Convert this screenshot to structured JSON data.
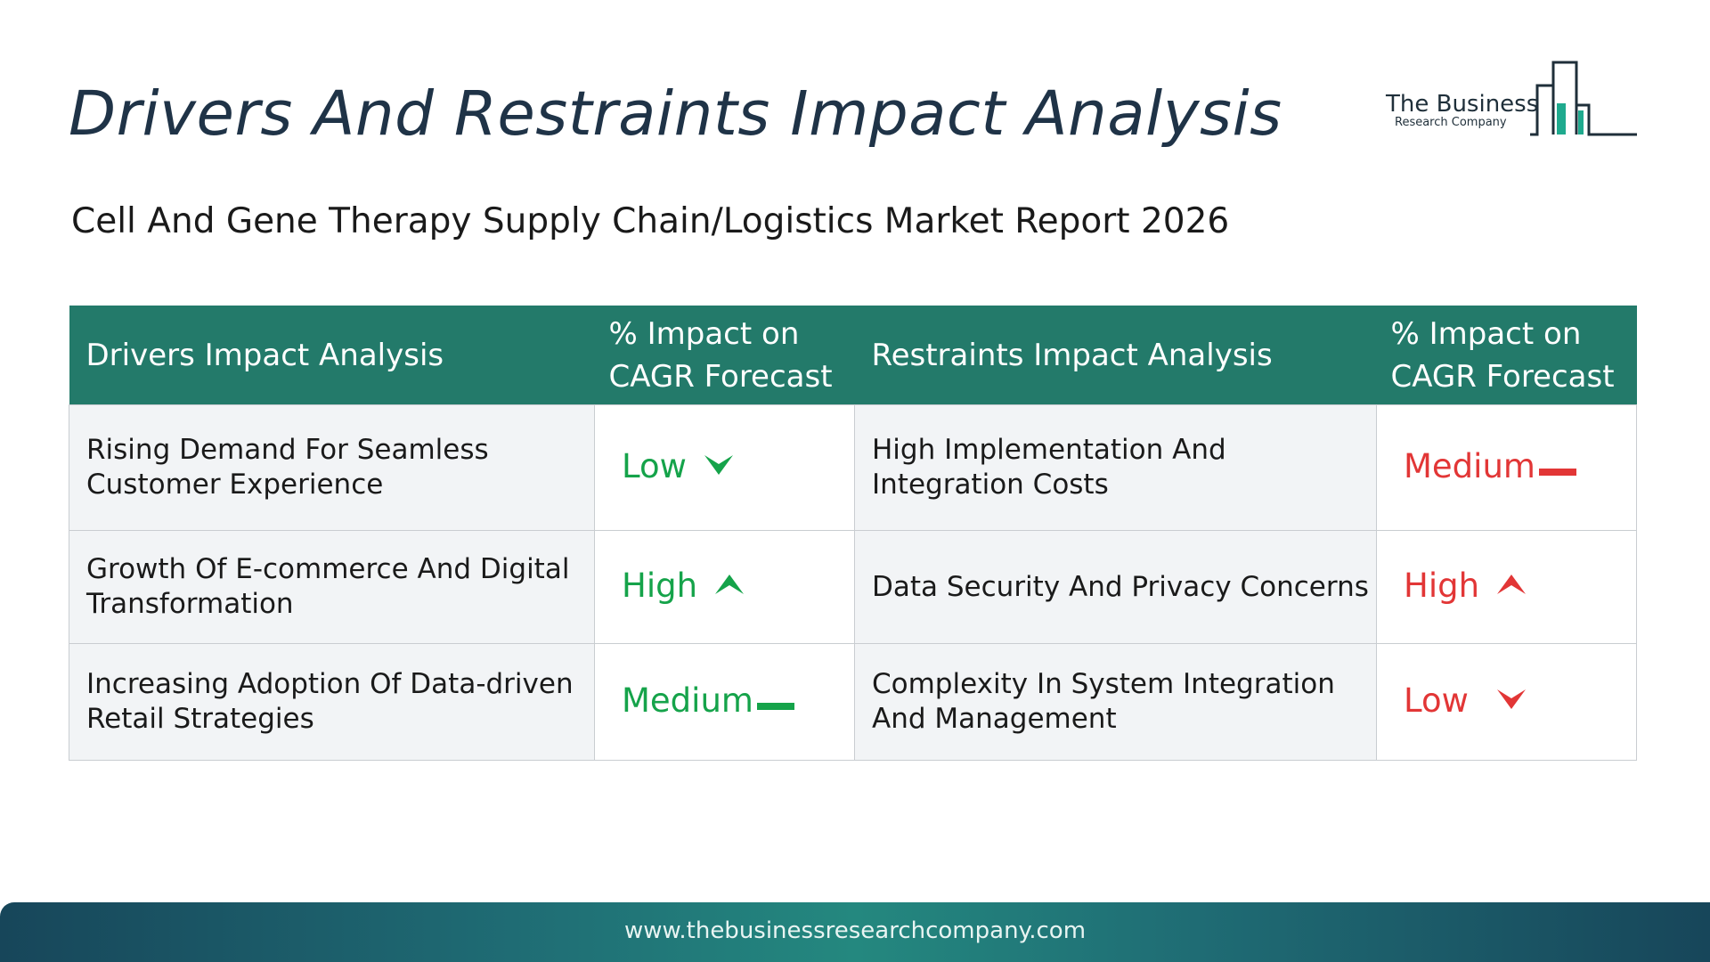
{
  "header": {
    "title": "Drivers And Restraints Impact Analysis",
    "subtitle": "Cell And Gene Therapy Supply Chain/Logistics Market Report 2026"
  },
  "logo": {
    "line1": "The Business",
    "line2": "Research Company"
  },
  "table": {
    "headers": {
      "drivers": "Drivers Impact Analysis",
      "drivers_impact": "% Impact on CAGR Forecast",
      "restraints": "Restraints Impact Analysis",
      "restraints_impact": "% Impact on CAGR Forecast"
    },
    "rows": [
      {
        "driver": "Rising Demand For Seamless Customer Experience",
        "driver_impact": "Low",
        "driver_indicator": "down-arrow-icon",
        "restraint": "High Implementation And Integration Costs",
        "restraint_impact": "Medium",
        "restraint_indicator": "dash-icon"
      },
      {
        "driver": "Growth Of E-commerce And Digital Transformation",
        "driver_impact": "High",
        "driver_indicator": "up-arrow-icon",
        "restraint": "Data Security And Privacy Concerns",
        "restraint_impact": "High",
        "restraint_indicator": "up-arrow-icon"
      },
      {
        "driver": "Increasing Adoption Of Data-driven Retail Strategies",
        "driver_impact": "Medium",
        "driver_indicator": "dash-icon",
        "restraint": "Complexity In System Integration And Management",
        "restraint_impact": "Low",
        "restraint_indicator": "down-arrow-icon"
      }
    ]
  },
  "colors": {
    "header_bg": "#237a6a",
    "driver_green": "#15a34a",
    "restraint_red": "#e23636",
    "title": "#1f3347"
  },
  "footer": {
    "url": "www.thebusinessresearchcompany.com"
  }
}
